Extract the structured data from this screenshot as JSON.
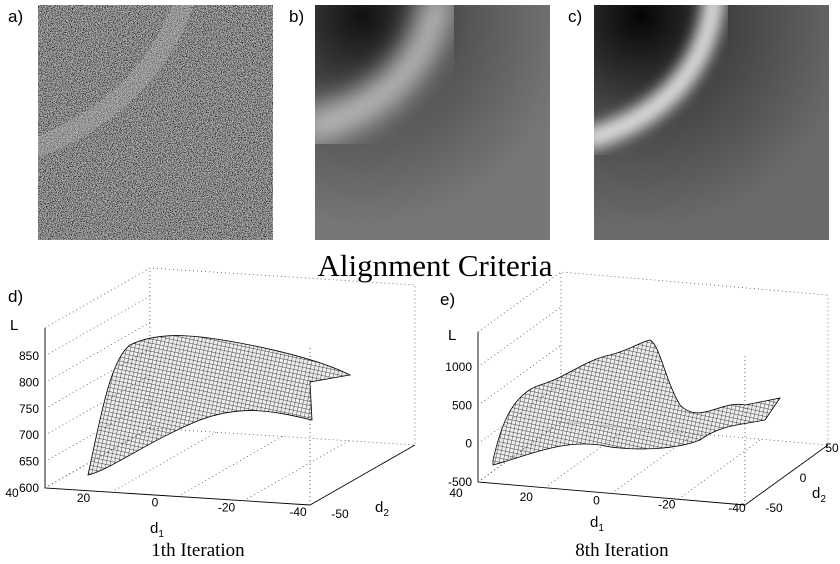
{
  "panels": [
    {
      "label": "a)"
    },
    {
      "label": "b)"
    },
    {
      "label": "c)"
    }
  ],
  "title": "Alignment Criteria",
  "plots": [
    {
      "label": "d)",
      "z_axis_label": "L",
      "z_ticks": [
        600,
        650,
        700,
        750,
        800,
        850
      ],
      "d1_ticks": [
        40,
        20,
        0,
        -20,
        -40
      ],
      "d2_ticks": [
        -50
      ],
      "x_axis_label": "d",
      "x_axis_subscript": "1",
      "y_axis_label": "d",
      "y_axis_subscript": "2",
      "caption": "1th Iteration"
    },
    {
      "label": "e)",
      "z_axis_label": "L",
      "z_ticks": [
        -500,
        0,
        500,
        1000
      ],
      "d1_ticks": [
        40,
        20,
        0,
        -20,
        -40
      ],
      "d2_ticks": [
        -50,
        0,
        50
      ],
      "x_axis_label": "d",
      "x_axis_subscript": "1",
      "y_axis_label": "d",
      "y_axis_subscript": "2",
      "caption": "8th Iteration"
    }
  ]
}
